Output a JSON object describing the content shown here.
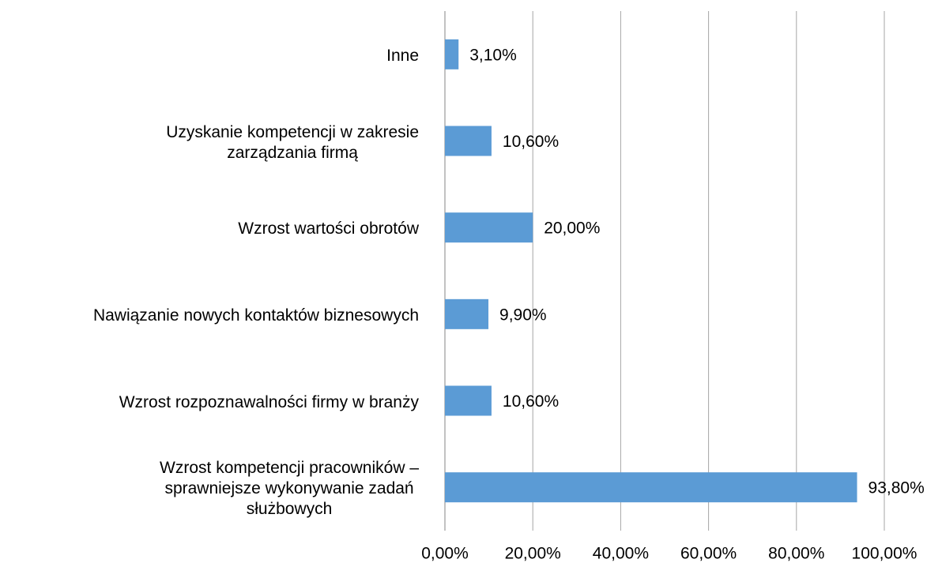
{
  "chart_data": {
    "type": "barh",
    "categories": [
      "Inne",
      "Uzyskanie kompetencji w zakresie\nzarządzania firmą",
      "Wzrost wartości obrotów",
      "Nawiązanie nowych kontaktów biznesowych",
      "Wzrost rozpoznawalności firmy w branży",
      "Wzrost kompetencji pracowników –\nsprawniejsze wykonywanie zadań\nsłużbowych"
    ],
    "values": [
      3.1,
      10.6,
      20.0,
      9.9,
      10.6,
      93.8
    ],
    "value_labels": [
      "3,10%",
      "10,60%",
      "20,00%",
      "9,90%",
      "10,60%",
      "93,80%"
    ],
    "color": "#5b9bd5",
    "xlim": [
      0,
      100
    ],
    "xticks": [
      {
        "value": 0,
        "label": "0,00%"
      },
      {
        "value": 20,
        "label": "20,00%"
      },
      {
        "value": 40,
        "label": "40,00%"
      },
      {
        "value": 60,
        "label": "60,00%"
      },
      {
        "value": 80,
        "label": "80,00%"
      },
      {
        "value": 100,
        "label": "100,00%"
      }
    ],
    "grid": true
  }
}
